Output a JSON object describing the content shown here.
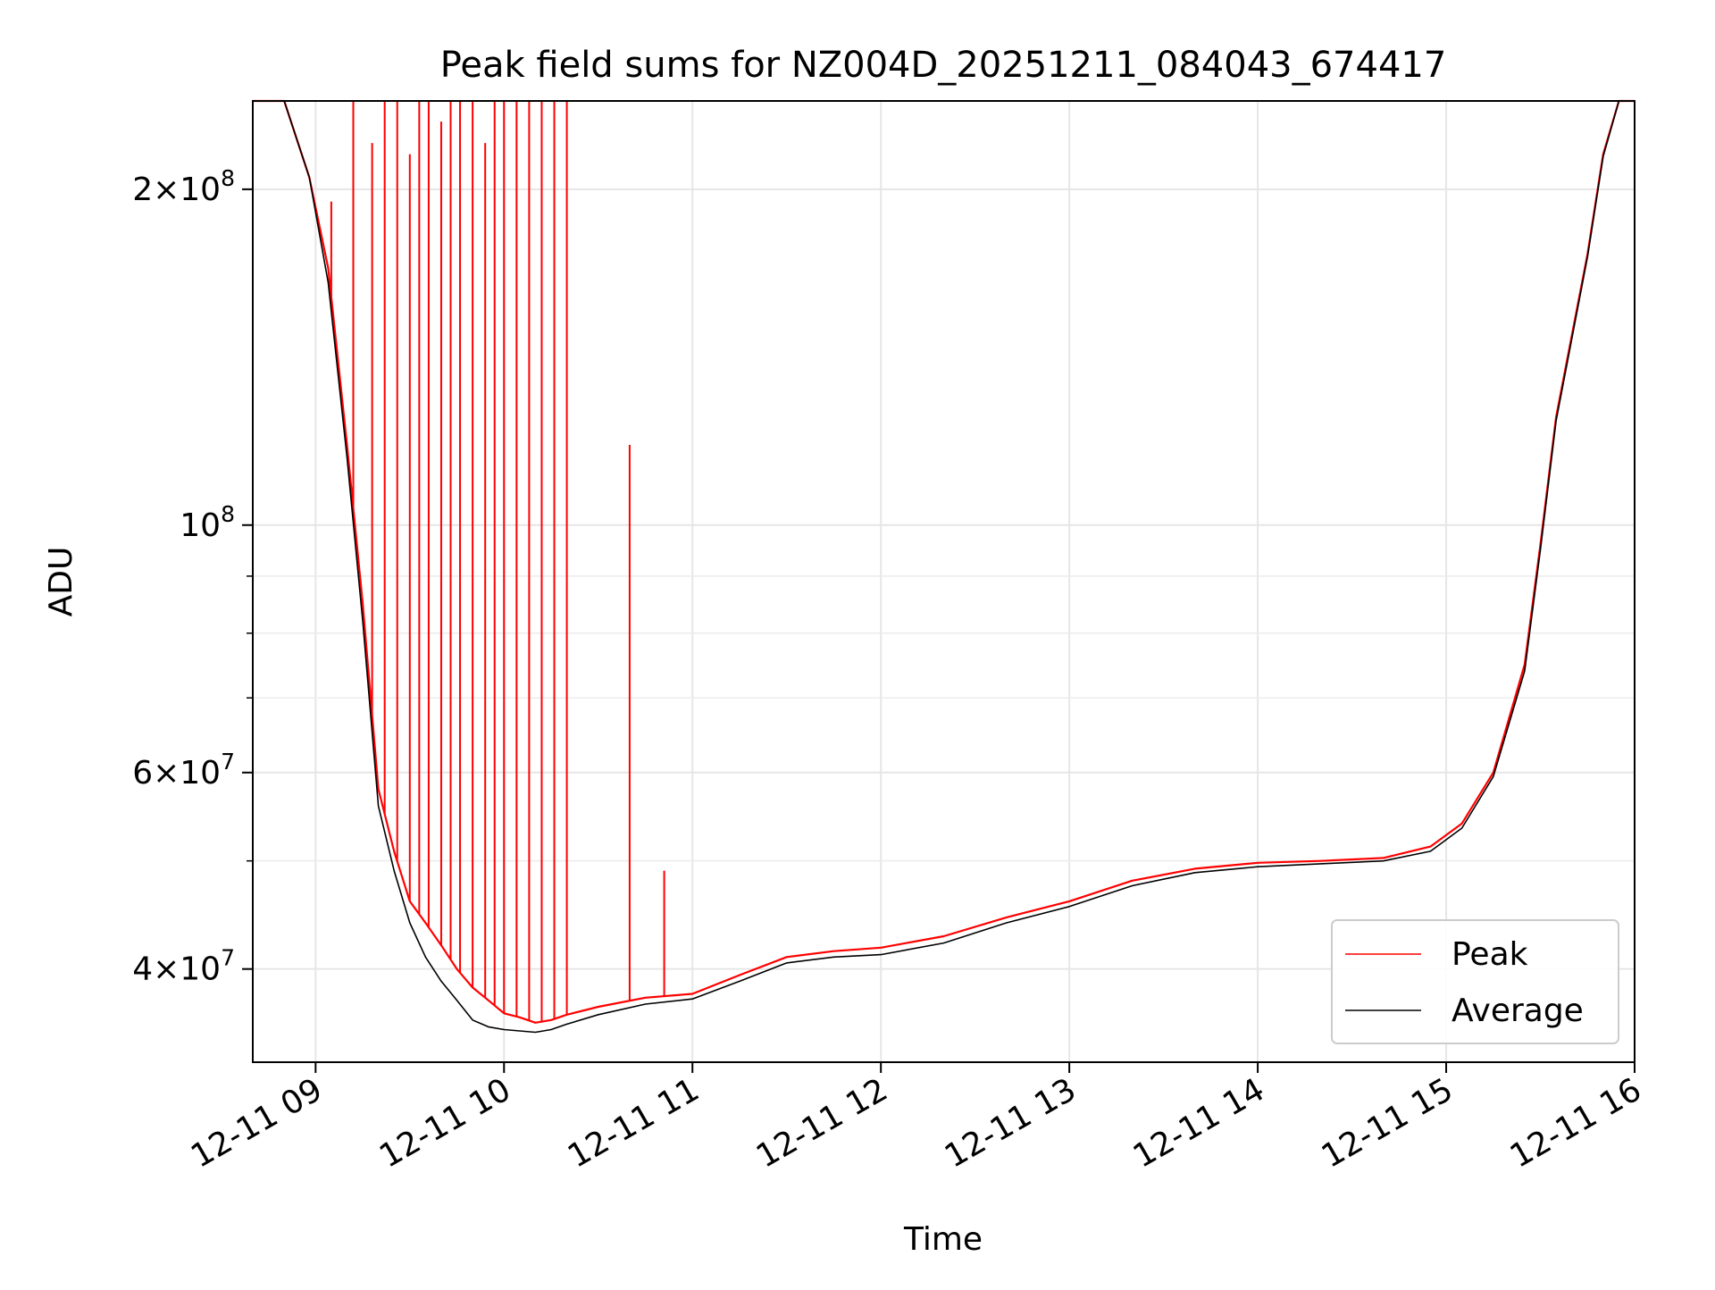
{
  "chart_data": {
    "type": "line",
    "title": "Peak field sums for NZ004D_20251211_084043_674417",
    "xlabel": "Time",
    "ylabel": "ADU",
    "y_scale": "log",
    "grid": true,
    "legend_placement": "lower-right",
    "xlim": [
      "2025-12-11 08:40",
      "2025-12-11 16:00"
    ],
    "ylim": [
      33000000,
      240000000
    ],
    "x_ticks": [
      {
        "value": "2025-12-11 09:00",
        "label": "12-11 09"
      },
      {
        "value": "2025-12-11 10:00",
        "label": "12-11 10"
      },
      {
        "value": "2025-12-11 11:00",
        "label": "12-11 11"
      },
      {
        "value": "2025-12-11 12:00",
        "label": "12-11 12"
      },
      {
        "value": "2025-12-11 13:00",
        "label": "12-11 13"
      },
      {
        "value": "2025-12-11 14:00",
        "label": "12-11 14"
      },
      {
        "value": "2025-12-11 15:00",
        "label": "12-11 15"
      },
      {
        "value": "2025-12-11 16:00",
        "label": "12-11 16"
      }
    ],
    "y_major_ticks": [
      {
        "value": 40000000,
        "coef": "4",
        "exp": "7"
      },
      {
        "value": 60000000,
        "coef": "6",
        "exp": "7"
      },
      {
        "value": 100000000,
        "coef": "",
        "exp": "8"
      },
      {
        "value": 200000000,
        "coef": "2",
        "exp": "8"
      }
    ],
    "y_minor_ticks": [
      50000000,
      70000000,
      80000000,
      90000000
    ],
    "series": [
      {
        "name": "Peak",
        "color": "#ff0000",
        "x": [
          "2025-12-11 08:40",
          "2025-12-11 08:50",
          "2025-12-11 08:58",
          "2025-12-11 09:04",
          "2025-12-11 09:10",
          "2025-12-11 09:15",
          "2025-12-11 09:20",
          "2025-12-11 09:25",
          "2025-12-11 09:30",
          "2025-12-11 09:35",
          "2025-12-11 09:40",
          "2025-12-11 09:45",
          "2025-12-11 09:50",
          "2025-12-11 09:55",
          "2025-12-11 10:00",
          "2025-12-11 10:05",
          "2025-12-11 10:10",
          "2025-12-11 10:15",
          "2025-12-11 10:20",
          "2025-12-11 10:30",
          "2025-12-11 10:45",
          "2025-12-11 11:00",
          "2025-12-11 11:15",
          "2025-12-11 11:30",
          "2025-12-11 11:45",
          "2025-12-11 12:00",
          "2025-12-11 12:20",
          "2025-12-11 12:40",
          "2025-12-11 13:00",
          "2025-12-11 13:20",
          "2025-12-11 13:40",
          "2025-12-11 14:00",
          "2025-12-11 14:20",
          "2025-12-11 14:40",
          "2025-12-11 14:55",
          "2025-12-11 15:05",
          "2025-12-11 15:15",
          "2025-12-11 15:25",
          "2025-12-11 15:30",
          "2025-12-11 15:35",
          "2025-12-11 15:45",
          "2025-12-11 15:50",
          "2025-12-11 15:55",
          "2025-12-11 16:00"
        ],
        "y": [
          240000000,
          240000000,
          205000000,
          170000000,
          118000000,
          85000000,
          58000000,
          51000000,
          46000000,
          44000000,
          42000000,
          40000000,
          38500000,
          37500000,
          36500000,
          36200000,
          35800000,
          36000000,
          36400000,
          37000000,
          37700000,
          38000000,
          39500000,
          41000000,
          41500000,
          41800000,
          42800000,
          44500000,
          46000000,
          48000000,
          49200000,
          49800000,
          50000000,
          50300000,
          51500000,
          54000000,
          60000000,
          75000000,
          96000000,
          125000000,
          175000000,
          215000000,
          240000000,
          240000000
        ]
      },
      {
        "name": "Average",
        "color": "#000000",
        "x": [
          "2025-12-11 08:40",
          "2025-12-11 08:50",
          "2025-12-11 08:58",
          "2025-12-11 09:04",
          "2025-12-11 09:10",
          "2025-12-11 09:15",
          "2025-12-11 09:20",
          "2025-12-11 09:25",
          "2025-12-11 09:30",
          "2025-12-11 09:35",
          "2025-12-11 09:40",
          "2025-12-11 09:45",
          "2025-12-11 09:50",
          "2025-12-11 09:55",
          "2025-12-11 10:00",
          "2025-12-11 10:05",
          "2025-12-11 10:10",
          "2025-12-11 10:15",
          "2025-12-11 10:20",
          "2025-12-11 10:30",
          "2025-12-11 10:45",
          "2025-12-11 11:00",
          "2025-12-11 11:15",
          "2025-12-11 11:30",
          "2025-12-11 11:45",
          "2025-12-11 12:00",
          "2025-12-11 12:20",
          "2025-12-11 12:40",
          "2025-12-11 13:00",
          "2025-12-11 13:20",
          "2025-12-11 13:40",
          "2025-12-11 14:00",
          "2025-12-11 14:20",
          "2025-12-11 14:40",
          "2025-12-11 14:55",
          "2025-12-11 15:05",
          "2025-12-11 15:15",
          "2025-12-11 15:25",
          "2025-12-11 15:30",
          "2025-12-11 15:35",
          "2025-12-11 15:45",
          "2025-12-11 15:50",
          "2025-12-11 15:55",
          "2025-12-11 16:00"
        ],
        "y": [
          240000000,
          240000000,
          205000000,
          165000000,
          115000000,
          82000000,
          56000000,
          49000000,
          44000000,
          41000000,
          39000000,
          37500000,
          36000000,
          35500000,
          35300000,
          35200000,
          35100000,
          35300000,
          35700000,
          36400000,
          37200000,
          37600000,
          39000000,
          40500000,
          41000000,
          41200000,
          42200000,
          44000000,
          45500000,
          47500000,
          48800000,
          49400000,
          49700000,
          50000000,
          51000000,
          53500000,
          59500000,
          74000000,
          95000000,
          124000000,
          174000000,
          214000000,
          240000000,
          240000000
        ]
      }
    ],
    "peak_spikes": {
      "x": [
        "2025-12-11 09:05",
        "2025-12-11 09:12",
        "2025-12-11 09:18",
        "2025-12-11 09:22",
        "2025-12-11 09:26",
        "2025-12-11 09:30",
        "2025-12-11 09:33",
        "2025-12-11 09:36",
        "2025-12-11 09:40",
        "2025-12-11 09:43",
        "2025-12-11 09:46",
        "2025-12-11 09:50",
        "2025-12-11 09:54",
        "2025-12-11 09:57",
        "2025-12-11 10:00",
        "2025-12-11 10:04",
        "2025-12-11 10:08",
        "2025-12-11 10:12",
        "2025-12-11 10:16",
        "2025-12-11 10:20",
        "2025-12-11 10:40",
        "2025-12-11 10:51"
      ],
      "y": [
        195000000,
        240000000,
        220000000,
        240000000,
        240000000,
        215000000,
        240000000,
        240000000,
        230000000,
        240000000,
        240000000,
        240000000,
        220000000,
        240000000,
        240000000,
        240000000,
        240000000,
        240000000,
        240000000,
        240000000,
        118000000,
        49000000
      ]
    }
  }
}
